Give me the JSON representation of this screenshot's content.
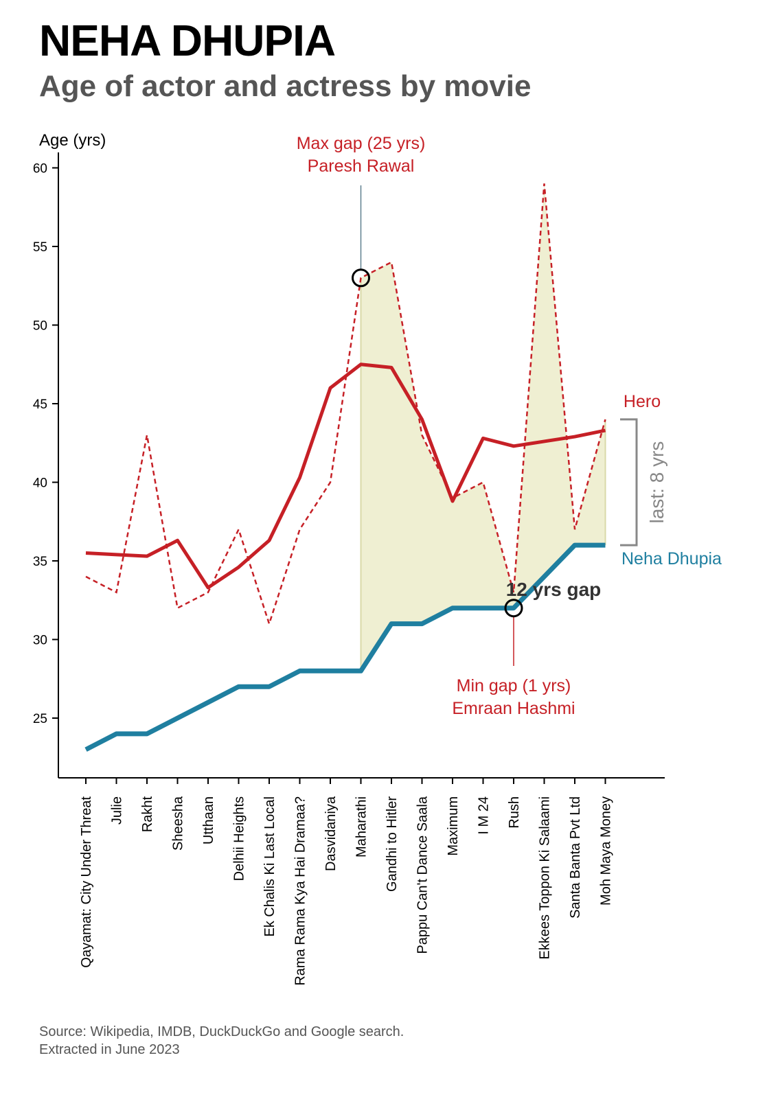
{
  "header": {
    "title": "NEHA DHUPIA",
    "subtitle": "Age of actor and actress by movie"
  },
  "footer": {
    "source_line1": "Source: Wikipedia, IMDB, DuckDuckGo and Google search.",
    "source_line2": "Extracted in June 2023"
  },
  "colors": {
    "hero": "#c62026",
    "actress": "#1f7fa0",
    "gap_fill": "#efefd2",
    "bracket": "#888888",
    "axis": "#000000",
    "gap_label": "#333333"
  },
  "chart_data": {
    "type": "line",
    "ylabel": "Age (yrs)",
    "ylim": [
      21,
      61
    ],
    "yticks": [
      25,
      30,
      35,
      40,
      45,
      50,
      55,
      60
    ],
    "grid": false,
    "categories": [
      "Qayamat: City Under Threat",
      "Julie",
      "Rakht",
      "Sheesha",
      "Utthaan",
      "Delhii Heights",
      "Ek Chalis Ki Last Local",
      "Rama Rama Kya Hai Dramaa?",
      "Dasvidaniya",
      "Maharathi",
      "Gandhi to Hitler",
      "Pappu Can't Dance Saala",
      "Maximum",
      "I M 24",
      "Rush",
      "Ekkees Toppon Ki Salaami",
      "Santa Banta Pvt Ltd",
      "Moh Maya Money"
    ],
    "series": [
      {
        "name": "Hero",
        "kind": "actor-age",
        "style": "dashed",
        "values": [
          34,
          33,
          43,
          32,
          33,
          37,
          31,
          37,
          40,
          53,
          54,
          43,
          39,
          40,
          33,
          59,
          37,
          44
        ]
      },
      {
        "name": "",
        "kind": "actor-age-smoothed",
        "style": "solid",
        "values": [
          35.5,
          35.4,
          35.3,
          36.3,
          33.3,
          34.6,
          36.3,
          40.3,
          46,
          47.5,
          47.3,
          44,
          38.8,
          42.8,
          42.3,
          42.6,
          42.9,
          43.3
        ]
      },
      {
        "name": "Neha Dhupia",
        "kind": "actress-age",
        "style": "solid",
        "values": [
          23,
          24,
          24,
          25,
          26,
          27,
          27,
          28,
          28,
          28,
          31,
          31,
          32,
          32,
          32,
          34,
          36,
          36
        ]
      }
    ],
    "annotations": {
      "max_gap": {
        "line1": "Max gap (25 yrs)",
        "line2": "Paresh Rawal",
        "index": 9
      },
      "min_gap": {
        "line1": "Min gap (1 yrs)",
        "line2": "Emraan Hashmi",
        "index": 14
      },
      "gap_label": {
        "text": "12 yrs gap",
        "index": 14
      },
      "last_gap": {
        "text": "last: 8 yrs"
      },
      "shade_from_index": 9
    }
  }
}
